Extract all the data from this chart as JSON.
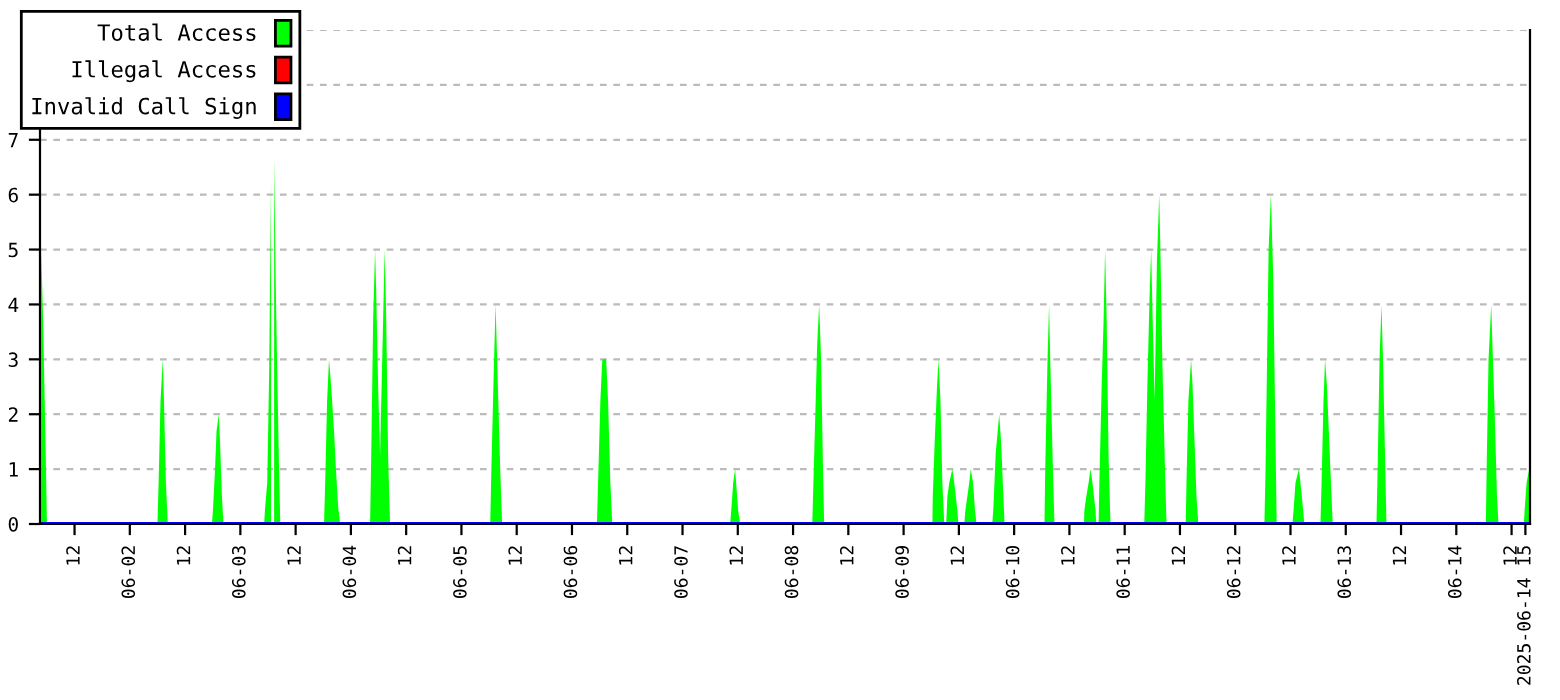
{
  "chart_data": {
    "type": "area",
    "xlim": [
      "2025-06-01T04:30",
      "2025-06-14T16:00"
    ],
    "xticks": [
      {
        "value": "2025-06-01T12:00",
        "label": "12"
      },
      {
        "value": "2025-06-02T00:00",
        "label": "06-02"
      },
      {
        "value": "2025-06-02T12:00",
        "label": "12"
      },
      {
        "value": "2025-06-03T00:00",
        "label": "06-03"
      },
      {
        "value": "2025-06-03T12:00",
        "label": "12"
      },
      {
        "value": "2025-06-04T00:00",
        "label": "06-04"
      },
      {
        "value": "2025-06-04T12:00",
        "label": "12"
      },
      {
        "value": "2025-06-05T00:00",
        "label": "06-05"
      },
      {
        "value": "2025-06-05T12:00",
        "label": "12"
      },
      {
        "value": "2025-06-06T00:00",
        "label": "06-06"
      },
      {
        "value": "2025-06-06T12:00",
        "label": "12"
      },
      {
        "value": "2025-06-07T00:00",
        "label": "06-07"
      },
      {
        "value": "2025-06-07T12:00",
        "label": "12"
      },
      {
        "value": "2025-06-08T00:00",
        "label": "06-08"
      },
      {
        "value": "2025-06-08T12:00",
        "label": "12"
      },
      {
        "value": "2025-06-09T00:00",
        "label": "06-09"
      },
      {
        "value": "2025-06-09T12:00",
        "label": "12"
      },
      {
        "value": "2025-06-10T00:00",
        "label": "06-10"
      },
      {
        "value": "2025-06-10T12:00",
        "label": "12"
      },
      {
        "value": "2025-06-11T00:00",
        "label": "06-11"
      },
      {
        "value": "2025-06-11T12:00",
        "label": "12"
      },
      {
        "value": "2025-06-12T00:00",
        "label": "06-12"
      },
      {
        "value": "2025-06-12T12:00",
        "label": "12"
      },
      {
        "value": "2025-06-13T00:00",
        "label": "06-13"
      },
      {
        "value": "2025-06-13T12:00",
        "label": "12"
      },
      {
        "value": "2025-06-14T00:00",
        "label": "06-14"
      },
      {
        "value": "2025-06-14T12:00",
        "label": "12"
      },
      {
        "value": "2025-06-14T15:00",
        "label": "2025-06-14 15"
      }
    ],
    "ylim": [
      0,
      9
    ],
    "yticks": [
      0,
      1,
      2,
      3,
      4,
      5,
      6,
      7,
      {
        "value": 8,
        "label": null
      },
      {
        "value": 9,
        "label": null
      }
    ],
    "grid": "y",
    "legend": "top left",
    "series": [
      {
        "name": "Total Access",
        "color": "#00ff00",
        "x": [
          "2025-06-01T04:45",
          "2025-06-01T05:10",
          "2025-06-01T05:45",
          "2025-06-01T06:00",
          "2025-06-02T06:00",
          "2025-06-02T06:15",
          "2025-06-02T06:40",
          "2025-06-02T07:10",
          "2025-06-02T07:25",
          "2025-06-02T07:50",
          "2025-06-02T08:15",
          "2025-06-02T17:50",
          "2025-06-02T18:05",
          "2025-06-02T18:30",
          "2025-06-02T18:50",
          "2025-06-02T19:20",
          "2025-06-02T19:35",
          "2025-06-02T20:00",
          "2025-06-02T20:20",
          "2025-06-03T05:10",
          "2025-06-03T05:20",
          "2025-06-03T05:50",
          "2025-06-03T06:15",
          "2025-06-03T06:40",
          "2025-06-03T07:00",
          "2025-06-03T07:20",
          "2025-06-03T07:45",
          "2025-06-03T08:20",
          "2025-06-03T08:40",
          "2025-06-03T18:10",
          "2025-06-03T18:25",
          "2025-06-03T18:50",
          "2025-06-03T19:15",
          "2025-06-03T19:30",
          "2025-06-03T19:55",
          "2025-06-03T20:20",
          "2025-06-03T20:45",
          "2025-06-03T21:15",
          "2025-06-03T21:40",
          "2025-06-04T04:10",
          "2025-06-04T04:25",
          "2025-06-04T04:50",
          "2025-06-04T05:15",
          "2025-06-04T05:30",
          "2025-06-04T05:55",
          "2025-06-04T06:20",
          "2025-06-04T07:00",
          "2025-06-04T07:20",
          "2025-06-04T07:40",
          "2025-06-04T08:05",
          "2025-06-04T08:30",
          "2025-06-05T06:15",
          "2025-06-05T06:30",
          "2025-06-05T07:05",
          "2025-06-05T07:25",
          "2025-06-05T07:45",
          "2025-06-05T08:25",
          "2025-06-05T08:50",
          "2025-06-06T05:25",
          "2025-06-06T05:40",
          "2025-06-06T06:10",
          "2025-06-06T06:35",
          "2025-06-06T07:25",
          "2025-06-06T07:50",
          "2025-06-06T08:20",
          "2025-06-06T08:45",
          "2025-06-07T10:20",
          "2025-06-07T10:35",
          "2025-06-07T11:00",
          "2025-06-07T11:25",
          "2025-06-07T12:05",
          "2025-06-07T12:30",
          "2025-06-08T04:10",
          "2025-06-08T04:25",
          "2025-06-08T04:50",
          "2025-06-08T05:15",
          "2025-06-08T05:40",
          "2025-06-08T06:05",
          "2025-06-08T06:30",
          "2025-06-08T06:45",
          "2025-06-09T06:15",
          "2025-06-09T06:20",
          "2025-06-09T06:45",
          "2025-06-09T07:15",
          "2025-06-09T07:35",
          "2025-06-09T08:00",
          "2025-06-09T08:25",
          "2025-06-09T08:50",
          "2025-06-09T09:15",
          "2025-06-09T09:30",
          "2025-06-09T09:55",
          "2025-06-09T10:35",
          "2025-06-09T11:00",
          "2025-06-09T11:40",
          "2025-06-09T11:55",
          "2025-06-09T13:10",
          "2025-06-09T13:25",
          "2025-06-09T13:50",
          "2025-06-09T14:15",
          "2025-06-09T14:35",
          "2025-06-09T15:05",
          "2025-06-09T15:30",
          "2025-06-09T15:50",
          "2025-06-09T19:15",
          "2025-06-09T19:30",
          "2025-06-09T20:00",
          "2025-06-09T20:20",
          "2025-06-09T20:45",
          "2025-06-09T21:10",
          "2025-06-09T21:40",
          "2025-06-09T21:55",
          "2025-06-10T06:35",
          "2025-06-10T06:45",
          "2025-06-10T07:15",
          "2025-06-10T07:35",
          "2025-06-10T07:50",
          "2025-06-10T08:25",
          "2025-06-10T08:45",
          "2025-06-10T15:10",
          "2025-06-10T15:15",
          "2025-06-10T15:40",
          "2025-06-10T16:10",
          "2025-06-10T16:35",
          "2025-06-10T17:00",
          "2025-06-10T17:40",
          "2025-06-10T17:50",
          "2025-06-10T18:20",
          "2025-06-10T18:30",
          "2025-06-10T19:00",
          "2025-06-10T19:25",
          "2025-06-10T19:45",
          "2025-06-10T20:05",
          "2025-06-10T20:30",
          "2025-06-10T20:55",
          "2025-06-11T04:15",
          "2025-06-11T04:30",
          "2025-06-11T04:55",
          "2025-06-11T05:25",
          "2025-06-11T05:45",
          "2025-06-11T06:00",
          "2025-06-11T06:30",
          "2025-06-11T07:00",
          "2025-06-11T07:30",
          "2025-06-11T07:45",
          "2025-06-11T08:10",
          "2025-06-11T08:45",
          "2025-06-11T09:05",
          "2025-06-11T13:15",
          "2025-06-11T13:25",
          "2025-06-11T13:50",
          "2025-06-11T14:25",
          "2025-06-11T14:45",
          "2025-06-11T15:10",
          "2025-06-11T15:35",
          "2025-06-11T16:00",
          "2025-06-12T06:20",
          "2025-06-12T06:35",
          "2025-06-12T06:55",
          "2025-06-12T07:15",
          "2025-06-12T07:45",
          "2025-06-12T08:15",
          "2025-06-12T08:45",
          "2025-06-12T09:00",
          "2025-06-12T12:25",
          "2025-06-12T12:40",
          "2025-06-12T13:05",
          "2025-06-12T13:50",
          "2025-06-12T14:10",
          "2025-06-12T14:45",
          "2025-06-12T15:00",
          "2025-06-12T18:30",
          "2025-06-12T18:45",
          "2025-06-12T19:10",
          "2025-06-12T19:30",
          "2025-06-12T19:55",
          "2025-06-12T20:25",
          "2025-06-12T20:55",
          "2025-06-12T21:10",
          "2025-06-13T06:40",
          "2025-06-13T06:55",
          "2025-06-13T07:20",
          "2025-06-13T07:45",
          "2025-06-13T08:05",
          "2025-06-13T08:35",
          "2025-06-13T08:50",
          "2025-06-14T06:25",
          "2025-06-14T06:35",
          "2025-06-14T07:00",
          "2025-06-14T07:35",
          "2025-06-14T07:50",
          "2025-06-14T08:20",
          "2025-06-14T08:50",
          "2025-06-14T09:10",
          "2025-06-14T14:40",
          "2025-06-14T14:50",
          "2025-06-14T15:15",
          "2025-06-14T15:50"
        ],
        "values": [
          5,
          3.75,
          1.25,
          0,
          0,
          0.75,
          2.25,
          3,
          2.25,
          0.75,
          0,
          0,
          0.3,
          1,
          1.7,
          2,
          1.5,
          0.5,
          0,
          0,
          0.25,
          0.75,
          2.75,
          6.25,
          null,
          6.7,
          4,
          1.3,
          0,
          0,
          0.75,
          2.25,
          3,
          2.75,
          2.25,
          1.7,
          1,
          0.3,
          0,
          0,
          1.25,
          3.75,
          5,
          4.2,
          2.5,
          1.25,
          3.75,
          5,
          3.75,
          1.25,
          0,
          0,
          1,
          3,
          4,
          3,
          1,
          0,
          0,
          0.75,
          2.25,
          3,
          3,
          2.25,
          0.75,
          0,
          0,
          0.25,
          0.75,
          1,
          0.25,
          0,
          0,
          0.75,
          2,
          3.3,
          4,
          3,
          1,
          0,
          0,
          0.5,
          1.5,
          2.5,
          3,
          2.25,
          0.75,
          0,
          0,
          0.5,
          0.75,
          1,
          0.75,
          0.25,
          0,
          0,
          0.25,
          0.5,
          0.75,
          1,
          0.75,
          0.25,
          0,
          0,
          0.3,
          1.3,
          1.6,
          2,
          1.5,
          0.5,
          0,
          0,
          1,
          3,
          4,
          3,
          1,
          0,
          0,
          0.25,
          0.5,
          0.75,
          1,
          0.75,
          0.25,
          0,
          0,
          0.75,
          2.5,
          3.7,
          5,
          3.75,
          1.25,
          0,
          0,
          0.75,
          2.5,
          4.2,
          5,
          4,
          2.25,
          4.8,
          6,
          5,
          3,
          1,
          0,
          0,
          0.75,
          2.25,
          3,
          2.5,
          1.5,
          0.5,
          0,
          0,
          1,
          3,
          5,
          6,
          4.5,
          1.5,
          0,
          0,
          0.25,
          0.75,
          1,
          0.75,
          0.25,
          0,
          0,
          0.75,
          2.25,
          3,
          2.5,
          1.5,
          0.5,
          0,
          0,
          1,
          3,
          4,
          3,
          1,
          0,
          0,
          1,
          3,
          4,
          3.3,
          2,
          0.5,
          0,
          0,
          0.25,
          0.75,
          1
        ]
      },
      {
        "name": "Illegal Access",
        "color": "#ff0000",
        "type": "line"
      },
      {
        "name": "Invalid Call Sign",
        "color": "#0000ff",
        "type": "line",
        "x": [
          "2025-06-01T04:30",
          "2025-06-14T16:00"
        ],
        "values": [
          0,
          0
        ]
      }
    ]
  }
}
